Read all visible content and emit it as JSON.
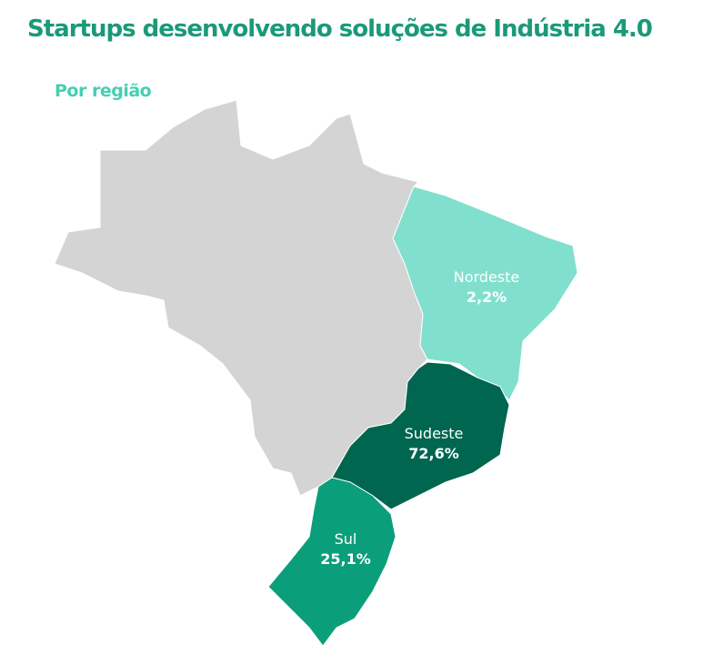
{
  "title": "Startups desenvolvendo soluções de Indústria 4.0",
  "subtitle": "Por região",
  "regions": [
    {
      "name": "Nordeste",
      "value": 2.2,
      "value_label": "2,2%",
      "color": "#80e0cd",
      "text_color": "#ffffff"
    },
    {
      "name": "Sudeste",
      "value": 72.6,
      "value_label": "72,6%",
      "color": "#00664f",
      "text_color": "#ffffff"
    },
    {
      "name": "Sul",
      "value": 25.1,
      "value_label": "25,1%",
      "color": "#0b9e7a",
      "text_color": "#ffffff"
    }
  ]
}
